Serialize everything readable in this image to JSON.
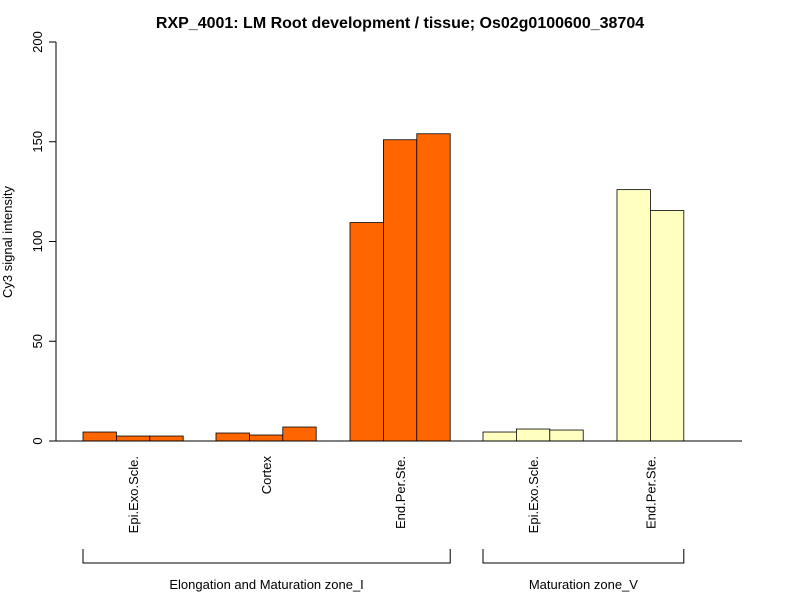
{
  "chart_data": {
    "type": "bar",
    "title": "RXP_4001: LM Root development / tissue; Os02g0100600_38704",
    "ylabel": "Cy3 signal intensity",
    "xlabel": "",
    "ylim": [
      0,
      200
    ],
    "yticks": [
      0,
      50,
      100,
      150,
      200
    ],
    "colors": {
      "zone_I": "#ff6600",
      "zone_V": "#ffffc0"
    },
    "categories": [
      {
        "label": "Epi.Exo.Scle.",
        "group": 0,
        "color_key": "zone_I",
        "values": [
          4.5,
          2.5,
          2.5
        ]
      },
      {
        "label": "Cortex",
        "group": 0,
        "color_key": "zone_I",
        "values": [
          4.0,
          3.0,
          7.0
        ]
      },
      {
        "label": "End.Per.Ste.",
        "group": 0,
        "color_key": "zone_I",
        "values": [
          109.5,
          151,
          154
        ]
      },
      {
        "label": "Epi.Exo.Scle.",
        "group": 1,
        "color_key": "zone_V",
        "values": [
          4.5,
          6.0,
          5.5
        ]
      },
      {
        "label": "End.Per.Ste.",
        "group": 1,
        "color_key": "zone_V",
        "values": [
          126,
          115.5
        ]
      }
    ],
    "groups": [
      {
        "label": "Elongation and Maturation zone_I",
        "first_category": 0,
        "last_category": 2
      },
      {
        "label": "Maturation zone_V",
        "first_category": 3,
        "last_category": 4
      }
    ]
  }
}
